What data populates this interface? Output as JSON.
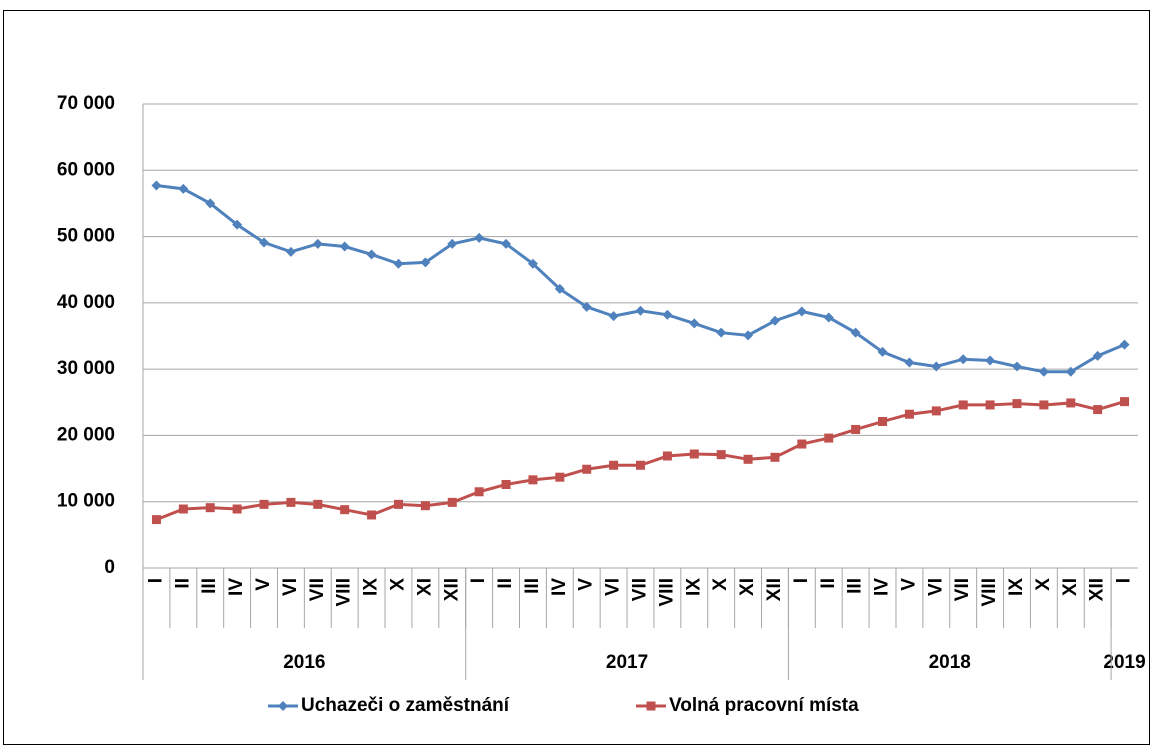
{
  "chart_data": {
    "type": "line",
    "category_groups": [
      {
        "label": "2016",
        "categories": [
          "I",
          "II",
          "III",
          "IV",
          "V",
          "VI",
          "VII",
          "VIII",
          "IX",
          "X",
          "XI",
          "XII"
        ]
      },
      {
        "label": "2017",
        "categories": [
          "I",
          "II",
          "III",
          "IV",
          "V",
          "VI",
          "VII",
          "VIII",
          "IX",
          "X",
          "XI",
          "XII"
        ]
      },
      {
        "label": "2018",
        "categories": [
          "I",
          "II",
          "III",
          "IV",
          "V",
          "VI",
          "VII",
          "VIII",
          "IX",
          "X",
          "XI",
          "XII"
        ]
      },
      {
        "label": "2019",
        "categories": [
          "I"
        ]
      }
    ],
    "series": [
      {
        "name": "Uchazeči o zaměstnání",
        "color": "#4f81bd",
        "marker": "diamond",
        "values": [
          57700,
          57200,
          55000,
          51800,
          49100,
          47700,
          48900,
          48500,
          47300,
          45900,
          46100,
          48900,
          49800,
          48900,
          45900,
          42100,
          39400,
          38000,
          38800,
          38200,
          36900,
          35500,
          35100,
          37300,
          38700,
          37800,
          35500,
          32600,
          31000,
          30400,
          31500,
          31300,
          30400,
          29600,
          29600,
          32000,
          33700
        ]
      },
      {
        "name": "Volná pracovní místa",
        "color": "#c0504d",
        "marker": "square",
        "values": [
          7300,
          8900,
          9100,
          8900,
          9600,
          9900,
          9600,
          8800,
          8000,
          9600,
          9400,
          9900,
          11500,
          12600,
          13300,
          13700,
          14900,
          15500,
          15500,
          16900,
          17200,
          17100,
          16400,
          16700,
          18700,
          19600,
          20900,
          22100,
          23200,
          23700,
          24600,
          24600,
          24800,
          24600,
          24900,
          23900,
          25100
        ]
      }
    ],
    "ylim": [
      0,
      70000
    ],
    "yticks": [
      0,
      {
        "value": 10000,
        "label": "10 000"
      },
      {
        "value": 20000,
        "label": "20 000"
      },
      {
        "value": 30000,
        "label": "30 000"
      },
      {
        "value": 40000,
        "label": "40 000"
      },
      {
        "value": 50000,
        "label": "50 000"
      },
      {
        "value": 60000,
        "label": "60 000"
      },
      {
        "value": 70000,
        "label": "70 000"
      }
    ],
    "grid": true,
    "legend": "bottom"
  }
}
